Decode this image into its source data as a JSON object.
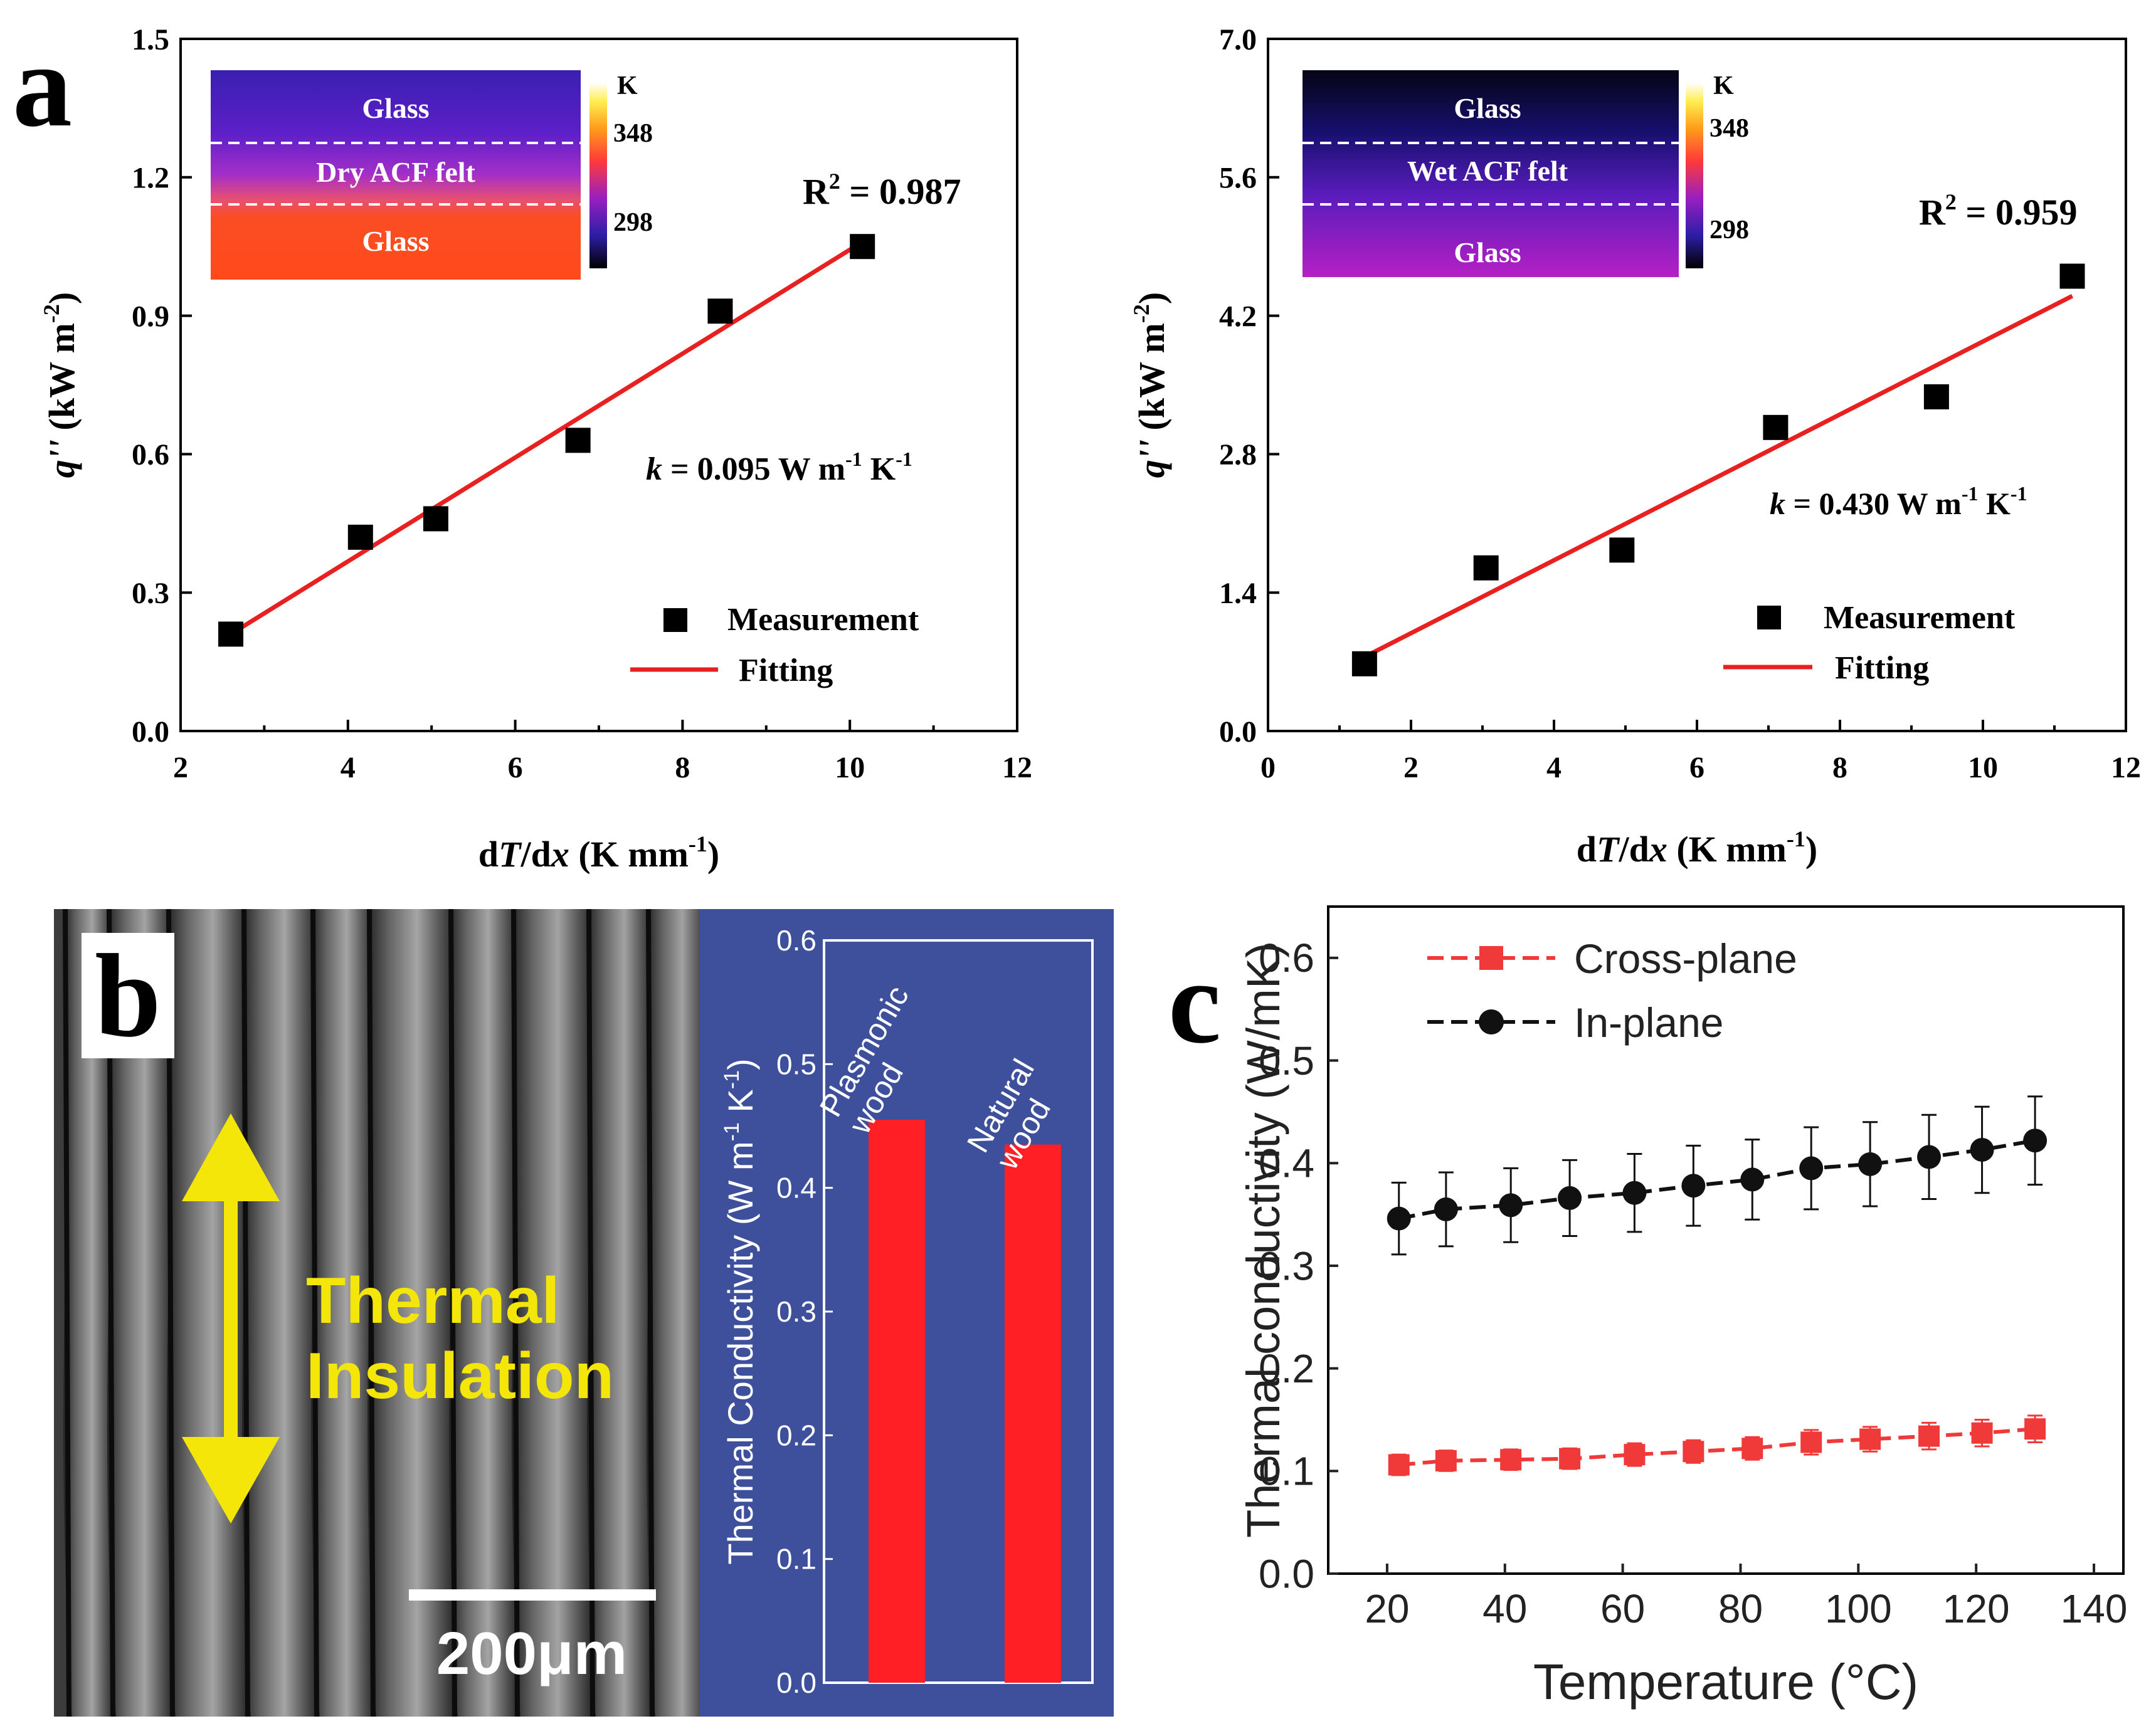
{
  "panel_labels": {
    "a": "a",
    "b": "b",
    "c": "c"
  },
  "chart_data": [
    {
      "id": "a-left",
      "type": "scatter",
      "xlabel": "dT/dx (K mm⁻¹)",
      "ylabel": "q'' (kW m⁻²)",
      "xlim": [
        2,
        12
      ],
      "ylim": [
        0,
        1.5
      ],
      "xticks": [
        "2",
        "4",
        "6",
        "8",
        "10",
        "12"
      ],
      "yticks": [
        "0.0",
        "0.3",
        "0.6",
        "0.9",
        "1.2",
        "1.5"
      ],
      "series": [
        {
          "name": "Measurement",
          "x": [
            2.6,
            4.15,
            5.05,
            6.75,
            8.45,
            10.15
          ],
          "y": [
            0.21,
            0.42,
            0.46,
            0.63,
            0.91,
            1.05
          ]
        },
        {
          "name": "Fitting",
          "x": [
            2.6,
            10.15
          ],
          "y": [
            0.21,
            1.06
          ]
        }
      ],
      "annotations": {
        "r2_base": "R",
        "r2_sup": "2",
        "r2_value": " = 0.987",
        "k_var": "k",
        "k_text": " = 0.095 W m",
        "k_sup1": "-1",
        "k_unit": " K",
        "k_sup2": "-1"
      },
      "legend": {
        "measurement": "Measurement",
        "fitting": "Fitting",
        "position": "bottom-right"
      },
      "inset": {
        "layers": [
          "Glass",
          "Dry ACF felt",
          "Glass"
        ],
        "scale_unit": "K",
        "scale_ticks": [
          "348",
          "298"
        ]
      }
    },
    {
      "id": "a-right",
      "type": "scatter",
      "xlabel": "dT/dx (K mm⁻¹)",
      "ylabel": "q'' (kW m⁻²)",
      "xlim": [
        0,
        12
      ],
      "ylim": [
        0,
        7
      ],
      "xticks": [
        "0",
        "2",
        "4",
        "6",
        "8",
        "10",
        "12"
      ],
      "yticks": [
        "0.0",
        "1.4",
        "2.8",
        "4.2",
        "5.6",
        "7.0"
      ],
      "series": [
        {
          "name": "Measurement",
          "x": [
            1.35,
            3.05,
            4.95,
            7.1,
            9.35,
            11.25
          ],
          "y": [
            0.68,
            1.65,
            1.83,
            3.07,
            3.38,
            4.6
          ]
        },
        {
          "name": "Fitting",
          "x": [
            1.35,
            11.25
          ],
          "y": [
            0.75,
            4.4
          ]
        }
      ],
      "annotations": {
        "r2_base": "R",
        "r2_sup": "2",
        "r2_value": " = 0.959",
        "k_var": "k",
        "k_text": " = 0.430 W m",
        "k_sup1": "-1",
        "k_unit": " K",
        "k_sup2": "-1"
      },
      "legend": {
        "measurement": "Measurement",
        "fitting": "Fitting",
        "position": "bottom-right"
      },
      "inset": {
        "layers": [
          "Glass",
          "Wet ACF felt",
          "Glass"
        ],
        "scale_unit": "K",
        "scale_ticks": [
          "348",
          "298"
        ]
      }
    },
    {
      "id": "b",
      "type": "bar",
      "categories": [
        "Plasmonic wood",
        "Natural wood"
      ],
      "values": [
        0.455,
        0.435
      ],
      "ylabel": "Thermal Conductivity (W m⁻¹ K⁻¹)",
      "ylim": [
        0,
        0.6
      ],
      "yticks": [
        "0.0",
        "0.1",
        "0.2",
        "0.3",
        "0.4",
        "0.5",
        "0.6"
      ],
      "image_texts": {
        "arrow_line1": "Thermal",
        "arrow_line2": "Insulation",
        "scale_bar": "200μm"
      }
    },
    {
      "id": "c",
      "type": "line",
      "xlabel": "Temperature (°C)",
      "ylabel": "Thermal conductivity (W/mK)",
      "xlim": [
        10,
        145
      ],
      "ylim": [
        0,
        0.65
      ],
      "xticks": [
        "20",
        "40",
        "60",
        "80",
        "100",
        "120",
        "140"
      ],
      "yticks": [
        "0.0",
        "0.1",
        "0.2",
        "0.3",
        "0.4",
        "0.5",
        "0.6"
      ],
      "x": [
        22,
        30,
        41,
        51,
        62,
        72,
        82,
        92,
        102,
        112,
        121,
        130
      ],
      "series": [
        {
          "name": "Cross-plane",
          "color": "#f03a3a",
          "values": [
            0.106,
            0.11,
            0.111,
            0.112,
            0.116,
            0.119,
            0.122,
            0.128,
            0.131,
            0.134,
            0.137,
            0.141
          ],
          "err": [
            0.01,
            0.01,
            0.01,
            0.01,
            0.011,
            0.011,
            0.011,
            0.012,
            0.012,
            0.013,
            0.013,
            0.013
          ]
        },
        {
          "name": "In-plane",
          "color": "#111111",
          "values": [
            0.346,
            0.355,
            0.359,
            0.366,
            0.371,
            0.378,
            0.384,
            0.395,
            0.399,
            0.406,
            0.413,
            0.422
          ],
          "err": [
            0.035,
            0.036,
            0.036,
            0.037,
            0.038,
            0.039,
            0.039,
            0.04,
            0.041,
            0.041,
            0.042,
            0.043
          ]
        }
      ],
      "legend": {
        "position": "top-left"
      }
    }
  ]
}
